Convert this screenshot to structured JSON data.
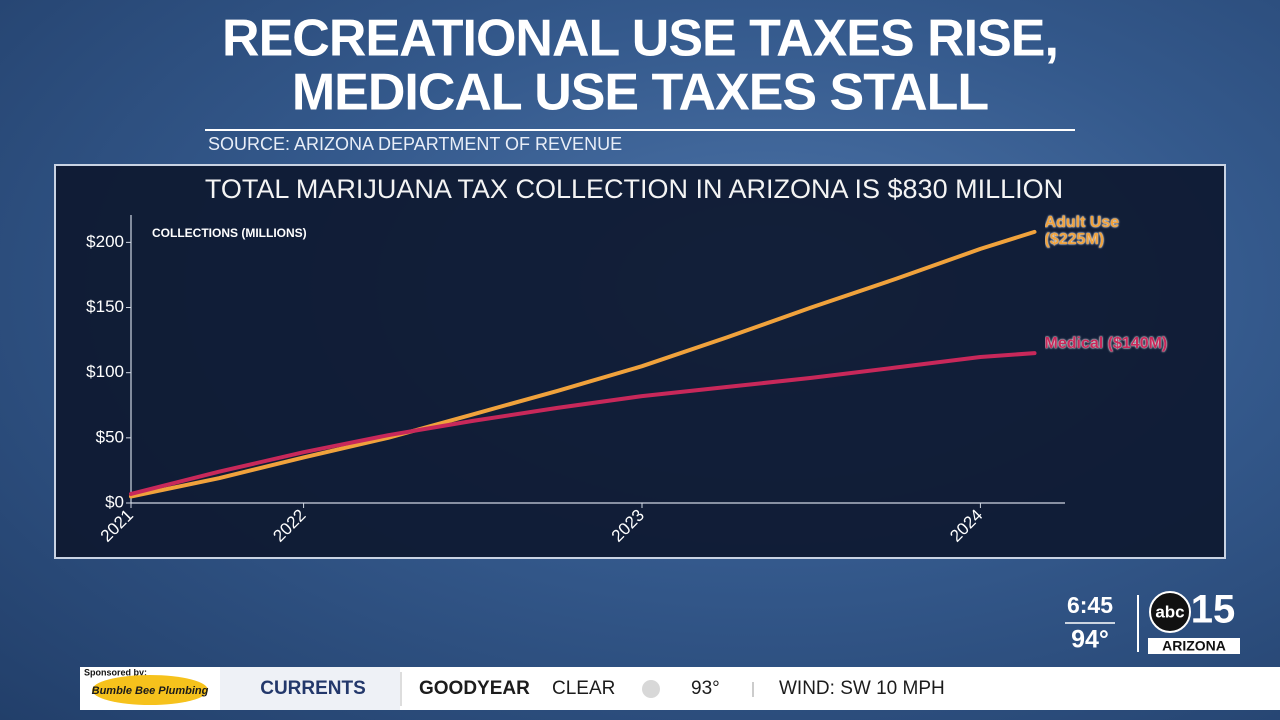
{
  "headline": [
    "RECREATIONAL USE TAXES RISE,",
    "MEDICAL USE TAXES STALL"
  ],
  "source": "SOURCE: ARIZONA DEPARTMENT OF REVENUE",
  "chart_data": {
    "type": "line",
    "title": "TOTAL MARIJUANA TAX COLLECTION IN ARIZONA IS $830 MILLION",
    "y_label": "COLLECTIONS (MILLIONS)",
    "x": [
      2021.49,
      2021.75,
      2022,
      2022.25,
      2022.5,
      2022.75,
      2023,
      2023.25,
      2023.5,
      2023.75,
      2024,
      2024.16
    ],
    "series": [
      {
        "name": "Adult Use ($225M)",
        "color": "#f0a23c",
        "values": [
          5,
          19,
          35,
          50,
          68,
          86,
          105,
          127,
          150,
          172,
          195,
          208
        ]
      },
      {
        "name": "Medical ($140M)",
        "color": "#c8285a",
        "values": [
          7,
          24,
          39,
          52,
          63,
          73,
          82,
          89,
          96,
          104,
          112,
          115
        ]
      }
    ],
    "xlim": [
      2021.49,
      2024.25
    ],
    "xticks": [
      {
        "value": 2021.49,
        "label": "2021"
      },
      2022,
      2023,
      2024
    ],
    "ylim": [
      0,
      221
    ],
    "yticks": [
      {
        "value": 0,
        "label": "$0"
      },
      {
        "value": 50,
        "label": "$50"
      },
      {
        "value": 100,
        "label": "$100"
      },
      {
        "value": 150,
        "label": "$150"
      },
      {
        "value": 200,
        "label": "$200"
      }
    ],
    "grid": false
  },
  "overlay": {
    "time": "6:45",
    "temperature": "94°",
    "logo_abc": "abc",
    "logo_number": "15",
    "logo_station": "ARIZONA"
  },
  "ticker": {
    "sponsor_label": "Sponsored by:",
    "sponsor": "Bumble Bee Plumbing",
    "segment": "CURRENTS",
    "city": "GOODYEAR",
    "condition": "CLEAR",
    "temperature": "93°",
    "wind": "WIND: SW 10 MPH"
  }
}
